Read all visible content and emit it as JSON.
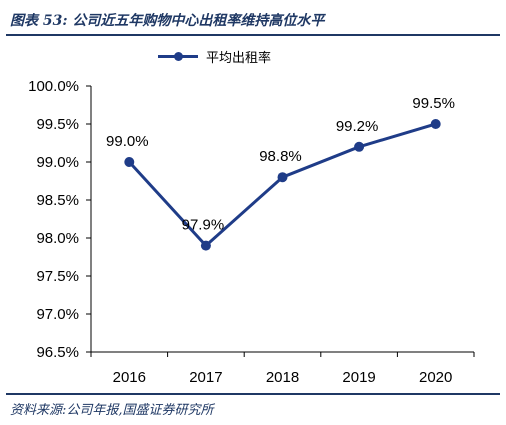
{
  "figure": {
    "title": "图表 53:  公司近五年购物中心出租率维持高位水平",
    "source": "资料来源:公司年报,国盛证券研究所"
  },
  "colors": {
    "series": "#1f3c88",
    "rule": "#1f3864",
    "axis": "#000000"
  },
  "chart_data": {
    "type": "line",
    "title": "",
    "xlabel": "",
    "ylabel": "",
    "categories": [
      "2016",
      "2017",
      "2018",
      "2019",
      "2020"
    ],
    "series": [
      {
        "name": "平均出租率",
        "values": [
          99.0,
          97.9,
          98.8,
          99.2,
          99.5
        ],
        "labels": [
          "99.0%",
          "97.9%",
          "98.8%",
          "99.2%",
          "99.5%"
        ]
      }
    ],
    "ylim": [
      96.5,
      100.0
    ],
    "yticks": [
      100.0,
      99.5,
      99.0,
      98.5,
      98.0,
      97.5,
      97.0,
      96.5
    ],
    "ytick_labels": [
      "100.0%",
      "99.5%",
      "99.0%",
      "98.5%",
      "98.0%",
      "97.5%",
      "97.0%",
      "96.5%"
    ],
    "grid": false,
    "legend": "top"
  }
}
